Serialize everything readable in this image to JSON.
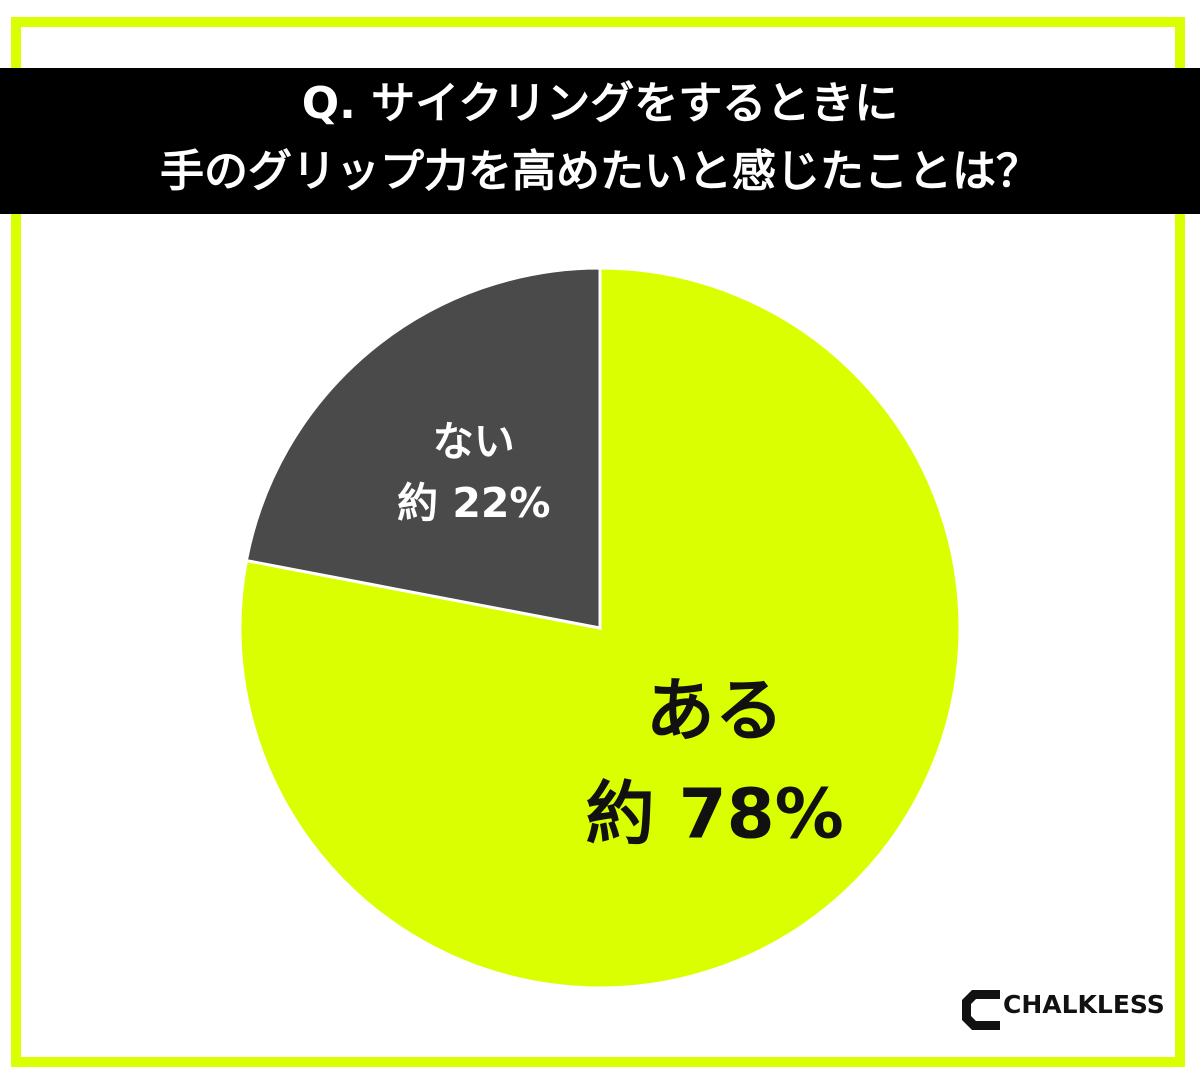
{
  "chart_data": {
    "type": "pie",
    "title": [
      "Q. サイクリングをするときに",
      "手のグリップ力を高めたいと感じたことは？"
    ],
    "categories": [
      "ある",
      "ない"
    ],
    "values": [
      78,
      22
    ],
    "value_labels": [
      "約 78%",
      "約 22%"
    ],
    "colors": [
      "#d9ff00",
      "#4a4a4a"
    ]
  },
  "brand": "CHALKLESS"
}
